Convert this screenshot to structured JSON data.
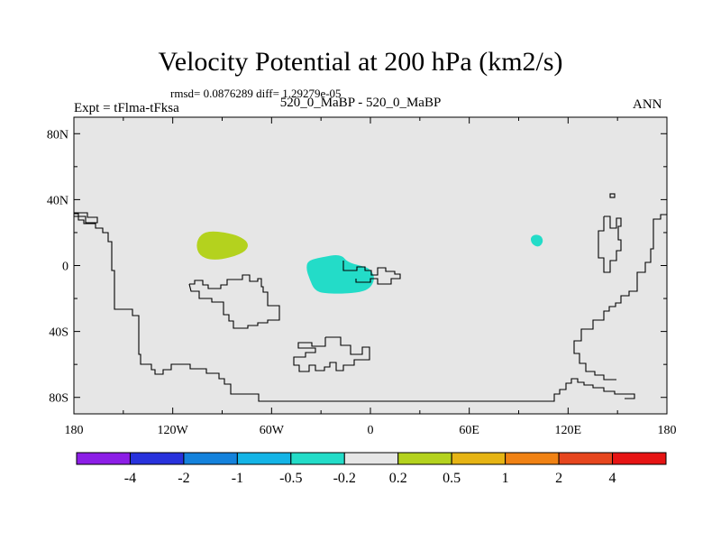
{
  "header": {
    "title": "Velocity Potential at 200 hPa (km2/s)",
    "stats": "rmsd= 0.0876289 diff= 1.29279e-05",
    "experiment": "Expt = tFlma-tFksa",
    "case": "520_0_MaBP - 520_0_MaBP",
    "season": "ANN"
  },
  "map": {
    "background_color": "#e6e6e6",
    "coastline_color": "#000000",
    "lon_ticks": [
      {
        "lon": -180,
        "label": "180"
      },
      {
        "lon": -120,
        "label": "120W"
      },
      {
        "lon": -60,
        "label": "60W"
      },
      {
        "lon": 0,
        "label": "0"
      },
      {
        "lon": 60,
        "label": "60E"
      },
      {
        "lon": 120,
        "label": "120E"
      },
      {
        "lon": 180,
        "label": "180"
      }
    ],
    "lat_ticks": [
      {
        "lat": 80,
        "label": "80N"
      },
      {
        "lat": 40,
        "label": "40N"
      },
      {
        "lat": 0,
        "label": "0"
      },
      {
        "lat": -40,
        "label": "40S"
      },
      {
        "lat": -80,
        "label": "80S"
      }
    ],
    "lon_range": [
      -180,
      180
    ],
    "lat_range": [
      -90,
      90
    ],
    "anomalies": [
      {
        "name": "anomaly-positive-tropical-atlantic",
        "color": "#b4d21e",
        "lonlat": [
          [
            -97,
            21
          ],
          [
            -88,
            20
          ],
          [
            -80,
            18
          ],
          [
            -74,
            14
          ],
          [
            -75,
            9
          ],
          [
            -84,
            5
          ],
          [
            -96,
            3
          ],
          [
            -104,
            6
          ],
          [
            -106,
            13
          ],
          [
            -103,
            19
          ]
        ]
      },
      {
        "name": "anomaly-negative-tropical-atlantic",
        "color": "#23dcc8",
        "lonlat": [
          [
            -38,
            3
          ],
          [
            -30,
            5
          ],
          [
            -18,
            7
          ],
          [
            -14,
            2
          ],
          [
            -6,
            0
          ],
          [
            0,
            -2
          ],
          [
            3,
            -8
          ],
          [
            -1,
            -15
          ],
          [
            -12,
            -17
          ],
          [
            -28,
            -17
          ],
          [
            -34,
            -15
          ],
          [
            -37,
            -8
          ],
          [
            -39,
            -2
          ]
        ]
      },
      {
        "name": "anomaly-negative-indian-ocean",
        "color": "#23dcc8",
        "lonlat": [
          [
            100,
            19
          ],
          [
            104,
            18
          ],
          [
            105,
            14
          ],
          [
            102,
            11
          ],
          [
            98,
            13
          ],
          [
            97,
            17
          ]
        ]
      }
    ]
  },
  "colorbar": {
    "colors": [
      "#8c1ee6",
      "#2832dc",
      "#1482dc",
      "#14b4e6",
      "#23dcc8",
      "#e6e6e6",
      "#b4d21e",
      "#e6b414",
      "#f08214",
      "#e6461e",
      "#e61414"
    ],
    "labels": [
      "-4",
      "-2",
      "-1",
      "-0.5",
      "-0.2",
      "0.2",
      "0.5",
      "1",
      "2",
      "4"
    ]
  }
}
